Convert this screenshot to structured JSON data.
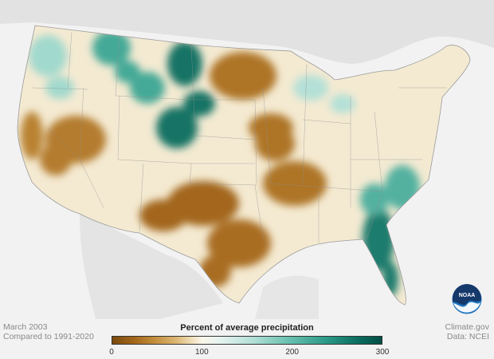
{
  "map": {
    "date_label": "March 2003",
    "comparison_label": "Compared to 1991-2020",
    "legend_title": "Percent of average precipitation",
    "legend_ticks": [
      {
        "value": 0,
        "label": "0"
      },
      {
        "value": 100,
        "label": "100"
      },
      {
        "value": 200,
        "label": "200"
      },
      {
        "value": 300,
        "label": "300"
      }
    ],
    "legend_range": [
      0,
      300
    ],
    "credit_source": "Climate.gov",
    "credit_data": "Data: NCEI",
    "logo_text": "NOAA",
    "colors": {
      "very_dry": "#7a4a0e",
      "dry": "#c4903f",
      "near_normal": "#fbf6ea",
      "wet": "#6cc2b1",
      "very_wet": "#024d44",
      "land_outside": "#e2e2e2",
      "ocean": "#f2f2f2"
    },
    "regions": [
      {
        "name": "northern-great-plains",
        "pct": 260
      },
      {
        "name": "northern-rockies",
        "pct": 200
      },
      {
        "name": "southern-great-plains",
        "pct": 40
      },
      {
        "name": "texas",
        "pct": 45
      },
      {
        "name": "mississippi-valley",
        "pct": 50
      },
      {
        "name": "great-basin",
        "pct": 55
      },
      {
        "name": "california",
        "pct": 60
      },
      {
        "name": "upper-midwest",
        "pct": 50
      },
      {
        "name": "great-lakes",
        "pct": 130
      },
      {
        "name": "florida",
        "pct": 250
      },
      {
        "name": "southeast-atlantic",
        "pct": 190
      },
      {
        "name": "pacific-northwest",
        "pct": 140
      }
    ]
  }
}
